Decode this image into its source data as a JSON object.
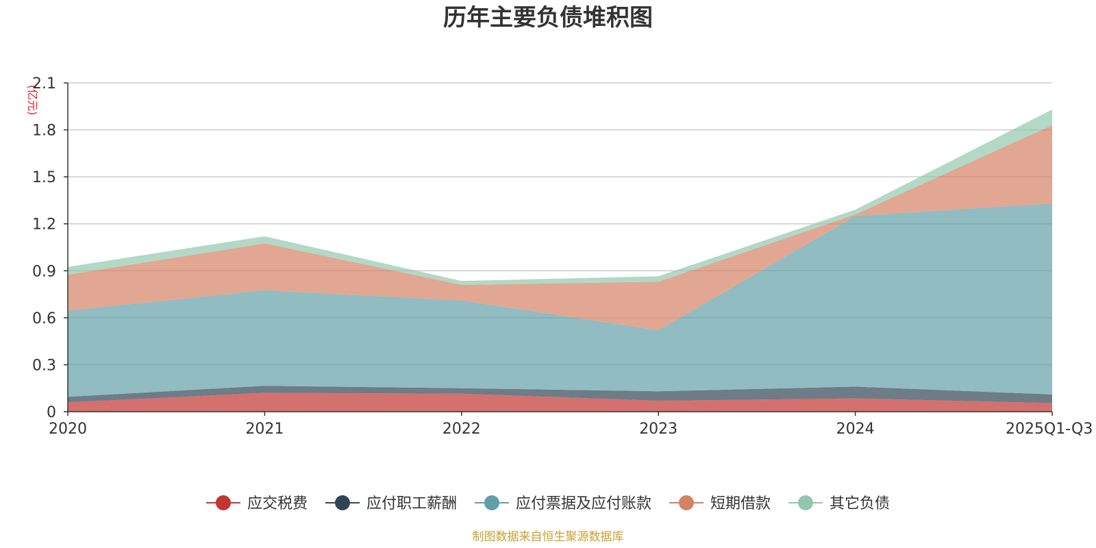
{
  "chart_data": {
    "type": "area",
    "stacked": true,
    "title": "历年主要负债堆积图",
    "unit": "(亿元)",
    "categories": [
      "2020",
      "2021",
      "2022",
      "2023",
      "2024",
      "2025Q1-Q3"
    ],
    "y_ticks": [
      "0",
      "0.3",
      "0.6",
      "0.9",
      "1.2",
      "1.5",
      "1.8",
      "2.1"
    ],
    "ylim": [
      0,
      2.1
    ],
    "grid": true,
    "legend_position": "bottom",
    "series": [
      {
        "name": "应交税费",
        "color": "#c23531",
        "values": [
          0.06,
          0.12,
          0.115,
          0.07,
          0.085,
          0.055
        ]
      },
      {
        "name": "应付职工薪酬",
        "color": "#2f4554",
        "values": [
          0.035,
          0.045,
          0.035,
          0.06,
          0.075,
          0.055
        ]
      },
      {
        "name": "应付票据及应付账款",
        "color": "#61a0a8",
        "values": [
          0.55,
          0.61,
          0.56,
          0.39,
          1.09,
          1.22
        ]
      },
      {
        "name": "短期借款",
        "color": "#d48265",
        "values": [
          0.23,
          0.3,
          0.1,
          0.31,
          0.01,
          0.5
        ]
      },
      {
        "name": "其它负债",
        "color": "#91c7ae",
        "values": [
          0.05,
          0.045,
          0.025,
          0.035,
          0.03,
          0.1
        ]
      }
    ],
    "source": "制图数据来自恒生聚源数据库",
    "colors": {
      "unit": "#e02020",
      "source": "#c8a030",
      "axis": "#333333",
      "grid": "#cccccc"
    }
  }
}
